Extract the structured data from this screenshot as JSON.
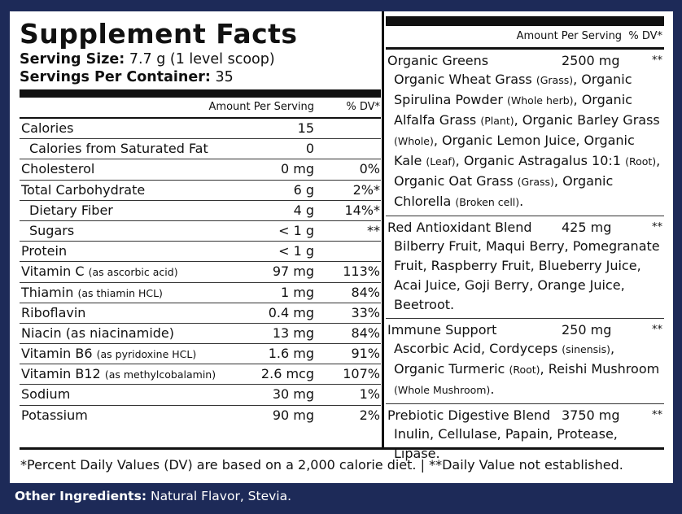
{
  "title": "Supplement Facts",
  "serving": {
    "size_label": "Serving Size:",
    "size_value": "7.7 g (1 level scoop)",
    "servings_label": "Servings Per Container:",
    "servings_value": "35"
  },
  "header": {
    "amount": "Amount Per Serving",
    "dv": "% DV*"
  },
  "nutrients": [
    {
      "name": "Calories",
      "sub": "",
      "amount": "15",
      "dv": ""
    },
    {
      "name": "Calories from Saturated Fat",
      "sub": "",
      "amount": "0",
      "dv": ""
    },
    {
      "name": "Cholesterol",
      "sub": "",
      "amount": "0 mg",
      "dv": "0%"
    },
    {
      "name": "Total Carbohydrate",
      "sub": "",
      "amount": "6 g",
      "dv": "2%*"
    },
    {
      "name": "Dietary Fiber",
      "sub": "",
      "amount": "4 g",
      "dv": "14%*"
    },
    {
      "name": "Sugars",
      "sub": "",
      "amount": "< 1 g",
      "dv": "**"
    },
    {
      "name": "Protein",
      "sub": "",
      "amount": "< 1 g",
      "dv": ""
    },
    {
      "name": "Vitamin C",
      "sub": "(as ascorbic acid)",
      "amount": "97 mg",
      "dv": "113%"
    },
    {
      "name": "Thiamin",
      "sub": "(as thiamin HCL)",
      "amount": "1 mg",
      "dv": "84%"
    },
    {
      "name": "Riboflavin",
      "sub": "",
      "amount": "0.4 mg",
      "dv": "33%"
    },
    {
      "name": "Niacin (as niacinamide)",
      "sub": "",
      "amount": "13 mg",
      "dv": "84%"
    },
    {
      "name": "Vitamin B6",
      "sub": "(as pyridoxine HCL)",
      "amount": "1.6 mg",
      "dv": "91%"
    },
    {
      "name": "Vitamin B12",
      "sub": "(as methylcobalamin)",
      "amount": "2.6 mcg",
      "dv": "107%"
    },
    {
      "name": "Sodium",
      "sub": "",
      "amount": "30 mg",
      "dv": "1%"
    },
    {
      "name": "Potassium",
      "sub": "",
      "amount": "90 mg",
      "dv": "2%"
    }
  ],
  "blends": [
    {
      "name": "Organic Greens",
      "amount": "2500 mg",
      "dv": "**",
      "parts": [
        {
          "t": "Organic Wheat Grass ",
          "s": "(Grass)"
        },
        {
          "t": ", Organic Spirulina Powder ",
          "s": "(Whole herb)"
        },
        {
          "t": ", Organic Alfalfa Grass ",
          "s": "(Plant)"
        },
        {
          "t": ", Organic Barley Grass ",
          "s": "(Whole)"
        },
        {
          "t": ", Organic Lemon Juice, Organic Kale ",
          "s": "(Leaf)"
        },
        {
          "t": ", Organic Astragalus 10:1 ",
          "s": "(Root)"
        },
        {
          "t": ", Organic Oat Grass ",
          "s": "(Grass)"
        },
        {
          "t": ", Organic Chlorella ",
          "s": "(Broken cell)"
        },
        {
          "t": ".",
          "s": ""
        }
      ]
    },
    {
      "name": "Red Antioxidant Blend",
      "amount": "425 mg",
      "dv": "**",
      "parts": [
        {
          "t": "Bilberry Fruit, Maqui Berry, Pomegranate Fruit, Raspberry Fruit, Blueberry Juice, Acai Juice, Goji Berry, Orange Juice, Beetroot.",
          "s": ""
        }
      ]
    },
    {
      "name": "Immune Support",
      "amount": "250 mg",
      "dv": "**",
      "parts": [
        {
          "t": "Ascorbic Acid, Cordyceps ",
          "s": "(sinensis)"
        },
        {
          "t": ", Organic Turmeric ",
          "s": "(Root)"
        },
        {
          "t": ", Reishi Mushroom ",
          "s": "(Whole Mushroom)"
        },
        {
          "t": ".",
          "s": ""
        }
      ]
    },
    {
      "name": "Prebiotic Digestive Blend",
      "amount": "3750 mg",
      "dv": "**",
      "parts": [
        {
          "t": "Inulin, Cellulase, Papain, Protease, Lipase.",
          "s": ""
        }
      ]
    }
  ],
  "footnote": "*Percent Daily Values (DV) are based on a 2,000 calorie diet.  |  **Daily Value not established.",
  "other": {
    "label": "Other Ingredients:",
    "value": "Natural Flavor, Stevia."
  },
  "colors": {
    "background": "#1d2a58",
    "panel": "#ffffff",
    "text": "#111111"
  }
}
